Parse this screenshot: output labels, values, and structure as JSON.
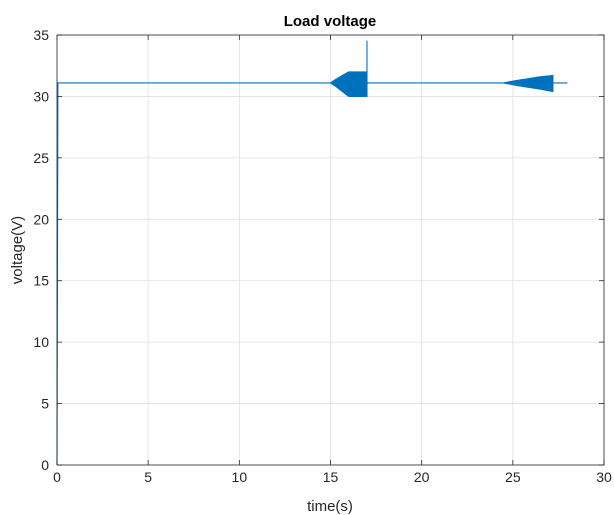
{
  "chart_data": {
    "type": "line",
    "title": "Load voltage",
    "xlabel": "time(s)",
    "ylabel": "voltage(V)",
    "xlim": [
      0,
      30
    ],
    "ylim": [
      0,
      35
    ],
    "xticks": [
      "0",
      "5",
      "10",
      "15",
      "20",
      "25",
      "30"
    ],
    "yticks": [
      "0",
      "5",
      "10",
      "15",
      "20",
      "25",
      "30",
      "35"
    ],
    "grid": true,
    "line_color": "#0072BD",
    "series": [
      {
        "values": [
          [
            0,
            0
          ],
          [
            0.05,
            31.1
          ],
          [
            15.0,
            31.1
          ],
          [
            15.3,
            31.4
          ],
          [
            16.0,
            32.0
          ],
          [
            16.2,
            32.0
          ],
          [
            16.2,
            30.0
          ],
          [
            16.0,
            30.0
          ],
          [
            15.3,
            30.8
          ],
          [
            15.0,
            31.1
          ],
          [
            16.2,
            32.0
          ],
          [
            17.0,
            32.0
          ],
          [
            17.0,
            34.5
          ],
          [
            17.0,
            30.0
          ],
          [
            16.2,
            30.0
          ],
          [
            17.05,
            31.1
          ],
          [
            24.5,
            31.1
          ],
          [
            25.2,
            31.3
          ],
          [
            26.5,
            31.6
          ],
          [
            27.2,
            31.7
          ],
          [
            27.2,
            30.4
          ],
          [
            26.5,
            30.6
          ],
          [
            25.2,
            30.9
          ],
          [
            24.5,
            31.1
          ],
          [
            27.3,
            31.1
          ],
          [
            28.0,
            31.1
          ]
        ]
      }
    ]
  }
}
